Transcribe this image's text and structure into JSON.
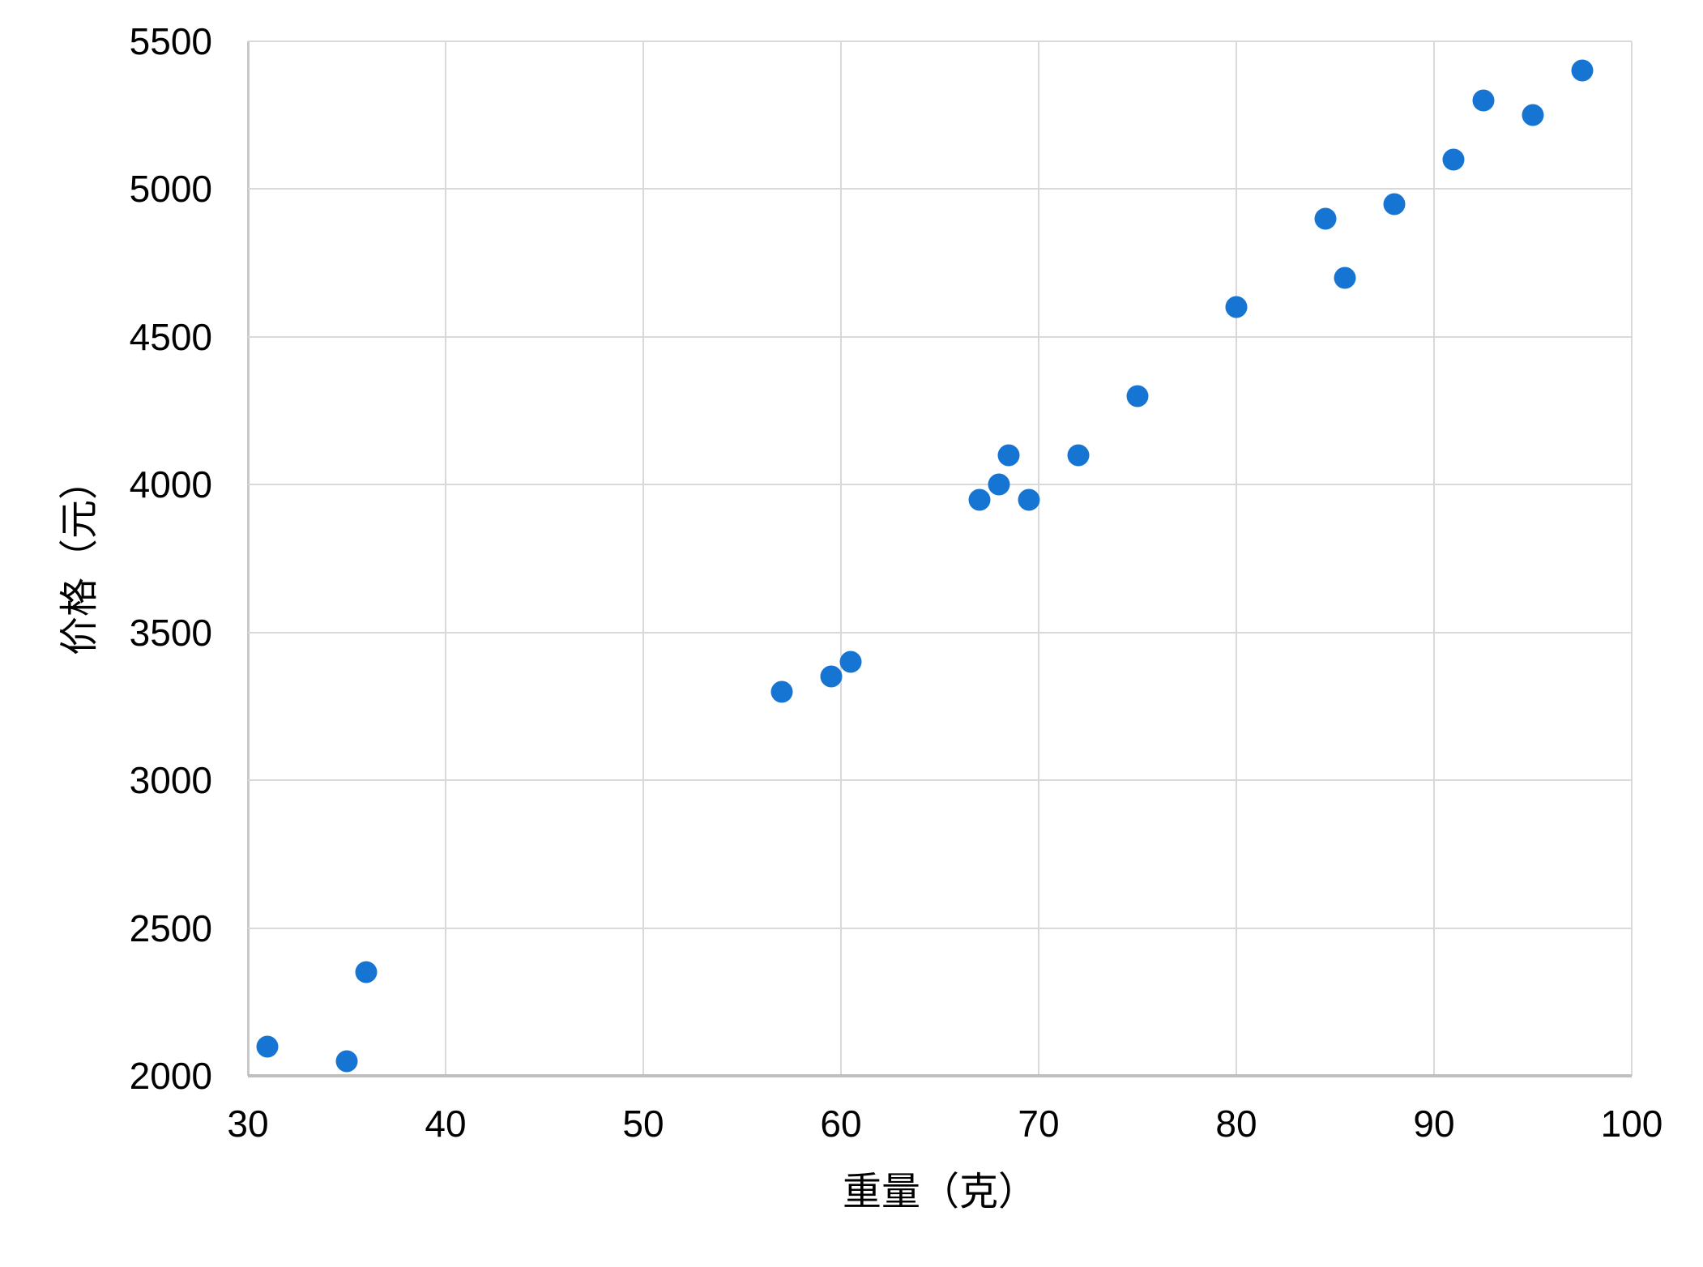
{
  "chart_data": {
    "type": "scatter",
    "title": "",
    "xlabel": "重量（克）",
    "ylabel": "价格（元）",
    "xticks": [
      30,
      40,
      50,
      60,
      70,
      80,
      90,
      100
    ],
    "yticks": [
      2000,
      2500,
      3000,
      3500,
      4000,
      4500,
      5000,
      5500
    ],
    "xlim": [
      30,
      100
    ],
    "ylim": [
      2000,
      5500
    ],
    "grid": true,
    "legend": null,
    "point_color": "#1674d3",
    "grid_color": "#d9d9d9",
    "axis_color": "#bfbfbf",
    "points": [
      {
        "x": 31,
        "y": 2100
      },
      {
        "x": 35,
        "y": 2050
      },
      {
        "x": 36,
        "y": 2350
      },
      {
        "x": 57,
        "y": 3300
      },
      {
        "x": 59.5,
        "y": 3350
      },
      {
        "x": 60.5,
        "y": 3400
      },
      {
        "x": 67,
        "y": 3950
      },
      {
        "x": 68,
        "y": 4000
      },
      {
        "x": 68.5,
        "y": 4100
      },
      {
        "x": 69.5,
        "y": 3950
      },
      {
        "x": 72,
        "y": 4100
      },
      {
        "x": 75,
        "y": 4300
      },
      {
        "x": 80,
        "y": 4600
      },
      {
        "x": 84.5,
        "y": 4900
      },
      {
        "x": 85.5,
        "y": 4700
      },
      {
        "x": 88,
        "y": 4950
      },
      {
        "x": 91,
        "y": 5100
      },
      {
        "x": 92.5,
        "y": 5300
      },
      {
        "x": 95,
        "y": 5250
      },
      {
        "x": 97.5,
        "y": 5400
      }
    ]
  }
}
